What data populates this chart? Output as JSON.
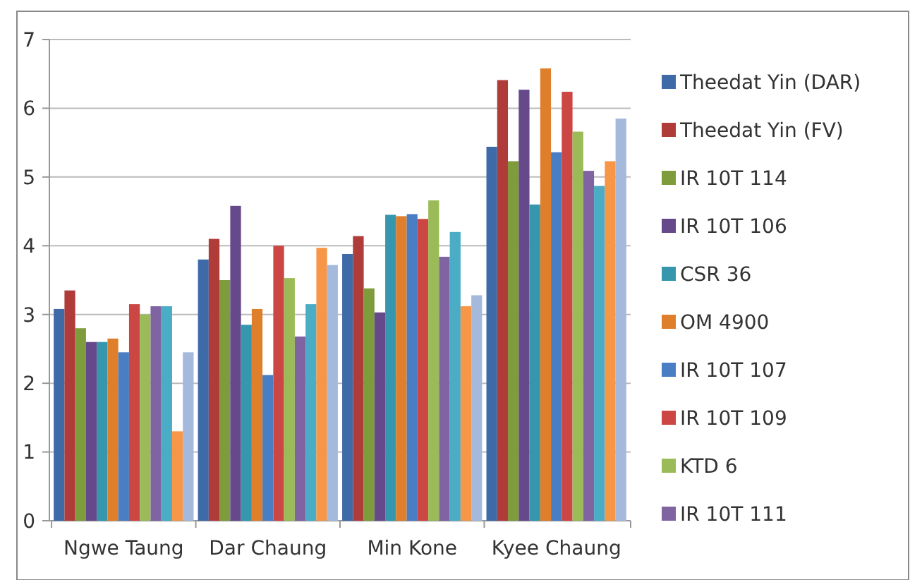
{
  "chart_data": {
    "type": "bar",
    "categories": [
      "Ngwe Taung",
      "Dar Chaung",
      "Min Kone",
      "Kyee Chaung"
    ],
    "ylim": [
      0,
      7
    ],
    "yticks": [
      0,
      1,
      2,
      3,
      4,
      5,
      6,
      7
    ],
    "grid": "y",
    "legend": "right",
    "series": [
      {
        "name": "Theedat Yin (DAR)",
        "color": "#3e6aa8",
        "values": [
          3.08,
          3.8,
          3.88,
          5.44
        ]
      },
      {
        "name": "Theedat Yin (FV)",
        "color": "#b03c3a",
        "values": [
          3.35,
          4.1,
          4.14,
          6.41
        ]
      },
      {
        "name": "IR 10T 114",
        "color": "#7e9c3c",
        "values": [
          2.8,
          3.5,
          3.38,
          5.23
        ]
      },
      {
        "name": "IR 10T 106",
        "color": "#66498a",
        "values": [
          2.6,
          4.58,
          3.03,
          6.27
        ]
      },
      {
        "name": "CSR 36",
        "color": "#3596ad",
        "values": [
          2.6,
          2.85,
          4.45,
          4.6
        ]
      },
      {
        "name": "OM 4900",
        "color": "#e07f2b",
        "values": [
          2.65,
          3.08,
          4.43,
          6.58
        ]
      },
      {
        "name": "IR 10T 107",
        "color": "#4a7ec4",
        "values": [
          2.45,
          2.12,
          4.46,
          5.36
        ]
      },
      {
        "name": "IR 10T 109",
        "color": "#cc4744",
        "values": [
          3.15,
          4.0,
          4.39,
          6.24
        ]
      },
      {
        "name": "KTD 6",
        "color": "#9bbb59",
        "values": [
          3.0,
          3.53,
          4.66,
          5.66
        ]
      },
      {
        "name": "IR 10T 111",
        "color": "#8064a2",
        "values": [
          3.12,
          2.68,
          3.84,
          5.09
        ]
      },
      {
        "color": "#4bacc6",
        "values": [
          3.12,
          3.15,
          4.2,
          4.87
        ]
      },
      {
        "color": "#f79646",
        "values": [
          1.3,
          3.97,
          3.12,
          5.23
        ]
      },
      {
        "color": "#a5b9dc",
        "values": [
          2.45,
          3.72,
          3.28,
          5.85
        ]
      }
    ]
  }
}
